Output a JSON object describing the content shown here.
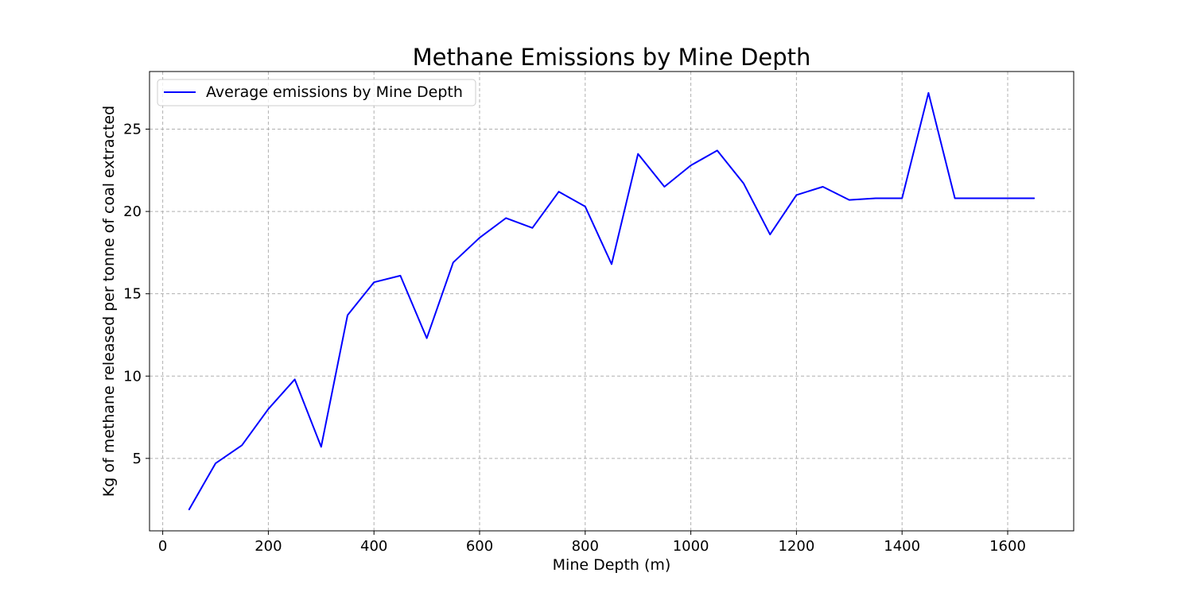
{
  "chart_data": {
    "type": "line",
    "title": "Methane Emissions by Mine Depth",
    "xlabel": "Mine Depth (m)",
    "ylabel": "Kg of methane released per tonne of coal extracted",
    "xlim": [
      -25,
      1725
    ],
    "ylim": [
      0.6,
      28.5
    ],
    "xticks": [
      0,
      200,
      400,
      600,
      800,
      1000,
      1200,
      1400,
      1600
    ],
    "yticks": [
      5,
      10,
      15,
      20,
      25
    ],
    "grid": true,
    "legend_position": "top-left",
    "series": [
      {
        "name": "Average emissions by Mine Depth",
        "color": "#0000ff",
        "x": [
          50,
          100,
          150,
          200,
          250,
          300,
          350,
          400,
          450,
          500,
          550,
          600,
          650,
          700,
          750,
          800,
          850,
          900,
          950,
          1000,
          1050,
          1100,
          1150,
          1200,
          1250,
          1300,
          1350,
          1400,
          1450,
          1500,
          1550,
          1600,
          1650
        ],
        "y": [
          1.9,
          4.7,
          5.8,
          8.0,
          9.8,
          5.7,
          13.7,
          15.7,
          16.1,
          12.3,
          16.9,
          18.4,
          19.6,
          19.0,
          21.2,
          20.3,
          16.8,
          23.5,
          21.5,
          22.8,
          23.7,
          21.7,
          18.6,
          21.0,
          21.5,
          20.7,
          20.8,
          20.8,
          27.2,
          20.8,
          20.8,
          20.8,
          20.8
        ]
      }
    ]
  }
}
